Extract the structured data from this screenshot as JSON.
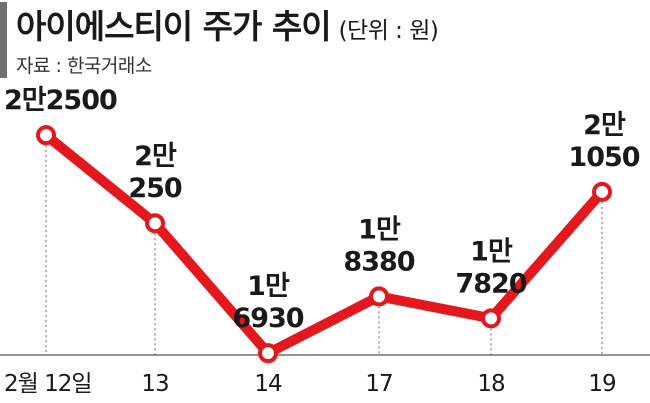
{
  "title": "아이에스티이 주가 추이",
  "unit_note": "(단위 : 원)",
  "source": "자료 : 한국거래소",
  "colors": {
    "line": "#e3171c",
    "marker_fill": "#ffffff",
    "axis": "#555555",
    "accent_bar": "#6f6f6f"
  },
  "chart_data": {
    "type": "line",
    "title": "아이에스티이 주가 추이",
    "ylabel": "",
    "xlabel": "",
    "categories": [
      "2월 12일",
      "13",
      "14",
      "17",
      "18",
      "19"
    ],
    "values": [
      22500,
      20250,
      16930,
      18380,
      17820,
      21050
    ],
    "data_labels": [
      [
        "2만2500"
      ],
      [
        "2만",
        "250"
      ],
      [
        "1만",
        "6930"
      ],
      [
        "1만",
        "8380"
      ],
      [
        "1만",
        "7820"
      ],
      [
        "2만",
        "1050"
      ]
    ],
    "ylim": [
      16500,
      23500
    ],
    "grid": false,
    "legend": "none"
  }
}
